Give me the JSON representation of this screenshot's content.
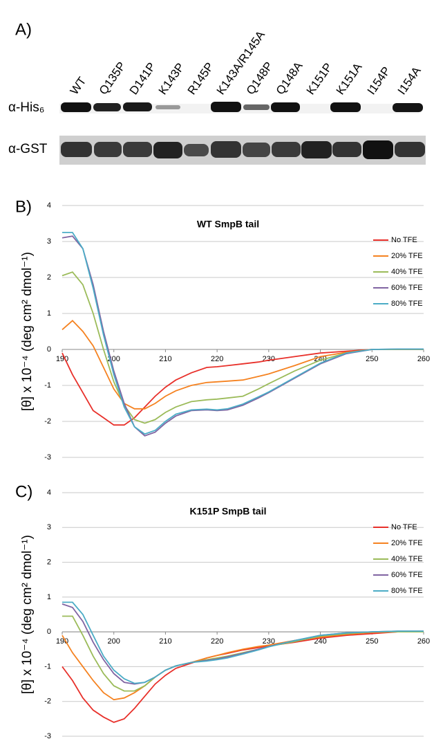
{
  "blot": {
    "panel_label": "A)",
    "lanes": [
      "WT",
      "Q135P",
      "D141P",
      "K143P",
      "R145P",
      "K143A/R145A",
      "Q148P",
      "Q148A",
      "K151P",
      "K151A",
      "I154P",
      "I154A"
    ],
    "rows": [
      "α-His₆",
      "α-GST"
    ]
  },
  "chart_data": [
    {
      "type": "line",
      "panel_label": "B)",
      "title": "WT SmpB tail",
      "y_label": "[θ] x 10⁻⁴ (deg cm² dmol⁻¹)",
      "x": [
        190,
        192,
        194,
        196,
        198,
        200,
        202,
        204,
        206,
        208,
        210,
        212,
        215,
        218,
        220,
        222,
        225,
        228,
        230,
        235,
        240,
        245,
        250,
        255,
        260
      ],
      "xlim": [
        190,
        260
      ],
      "xticks": [
        190,
        200,
        210,
        220,
        230,
        240,
        250,
        260
      ],
      "ylim": [
        -3,
        4
      ],
      "yticks": [
        -3,
        -2,
        -1,
        0,
        1,
        2,
        3,
        4
      ],
      "grid": true,
      "legend": "right",
      "series": [
        {
          "name": "No TFE",
          "color": "#e8302a",
          "values": [
            -0.1,
            -0.7,
            -1.2,
            -1.7,
            -1.9,
            -2.1,
            -2.1,
            -1.9,
            -1.6,
            -1.3,
            -1.05,
            -0.85,
            -0.65,
            -0.5,
            -0.48,
            -0.45,
            -0.4,
            -0.35,
            -0.3,
            -0.2,
            -0.1,
            -0.05,
            0,
            0,
            0
          ]
        },
        {
          "name": "20% TFE",
          "color": "#f58220",
          "values": [
            0.55,
            0.8,
            0.5,
            0.1,
            -0.5,
            -1.1,
            -1.5,
            -1.65,
            -1.65,
            -1.5,
            -1.3,
            -1.15,
            -1.0,
            -0.92,
            -0.9,
            -0.88,
            -0.85,
            -0.75,
            -0.68,
            -0.45,
            -0.2,
            -0.08,
            0,
            0,
            0
          ]
        },
        {
          "name": "40% TFE",
          "color": "#9bbb59",
          "values": [
            2.05,
            2.15,
            1.8,
            1.0,
            0.0,
            -0.9,
            -1.55,
            -1.95,
            -2.05,
            -1.95,
            -1.75,
            -1.6,
            -1.45,
            -1.4,
            -1.38,
            -1.35,
            -1.3,
            -1.1,
            -0.95,
            -0.6,
            -0.3,
            -0.1,
            0,
            0,
            0
          ]
        },
        {
          "name": "60% TFE",
          "color": "#8064a2",
          "values": [
            3.1,
            3.15,
            2.8,
            1.8,
            0.5,
            -0.6,
            -1.5,
            -2.15,
            -2.4,
            -2.3,
            -2.05,
            -1.85,
            -1.7,
            -1.68,
            -1.7,
            -1.68,
            -1.55,
            -1.35,
            -1.2,
            -0.8,
            -0.4,
            -0.12,
            0,
            0.01,
            0.01
          ]
        },
        {
          "name": "80% TFE",
          "color": "#4bacc6",
          "values": [
            3.25,
            3.25,
            2.8,
            1.7,
            0.4,
            -0.7,
            -1.6,
            -2.15,
            -2.35,
            -2.25,
            -2.0,
            -1.8,
            -1.68,
            -1.66,
            -1.68,
            -1.65,
            -1.52,
            -1.32,
            -1.18,
            -0.78,
            -0.38,
            -0.1,
            0,
            0.01,
            0.01
          ]
        }
      ]
    },
    {
      "type": "line",
      "panel_label": "C)",
      "title": "K151P SmpB tail",
      "y_label": "[θ] x 10⁻⁴ (deg cm² dmol⁻¹)",
      "x": [
        190,
        192,
        194,
        196,
        198,
        200,
        202,
        204,
        206,
        208,
        210,
        212,
        215,
        218,
        220,
        222,
        225,
        228,
        230,
        235,
        240,
        245,
        250,
        255,
        260
      ],
      "xlim": [
        190,
        260
      ],
      "xticks": [
        190,
        200,
        210,
        220,
        230,
        240,
        250,
        260
      ],
      "ylim": [
        -3,
        4
      ],
      "yticks": [
        -3,
        -2,
        -1,
        0,
        1,
        2,
        3,
        4
      ],
      "grid": true,
      "legend": "right",
      "series": [
        {
          "name": "No TFE",
          "color": "#e8302a",
          "values": [
            -1.0,
            -1.4,
            -1.9,
            -2.25,
            -2.45,
            -2.6,
            -2.5,
            -2.2,
            -1.85,
            -1.5,
            -1.25,
            -1.05,
            -0.9,
            -0.75,
            -0.68,
            -0.62,
            -0.52,
            -0.45,
            -0.4,
            -0.3,
            -0.18,
            -0.1,
            -0.05,
            0,
            0
          ]
        },
        {
          "name": "20% TFE",
          "color": "#f58220",
          "values": [
            -0.1,
            -0.6,
            -1.0,
            -1.4,
            -1.75,
            -1.95,
            -1.9,
            -1.75,
            -1.55,
            -1.3,
            -1.1,
            -0.98,
            -0.88,
            -0.75,
            -0.68,
            -0.6,
            -0.5,
            -0.42,
            -0.38,
            -0.25,
            -0.15,
            -0.07,
            -0.02,
            0,
            0
          ]
        },
        {
          "name": "40% TFE",
          "color": "#9bbb59",
          "values": [
            0.45,
            0.45,
            -0.1,
            -0.7,
            -1.2,
            -1.55,
            -1.7,
            -1.7,
            -1.55,
            -1.3,
            -1.1,
            -0.98,
            -0.88,
            -0.8,
            -0.75,
            -0.7,
            -0.6,
            -0.5,
            -0.42,
            -0.28,
            -0.12,
            -0.05,
            0,
            0,
            0
          ]
        },
        {
          "name": "60% TFE",
          "color": "#8064a2",
          "values": [
            0.8,
            0.7,
            0.3,
            -0.3,
            -0.8,
            -1.2,
            -1.45,
            -1.5,
            -1.45,
            -1.3,
            -1.1,
            -0.98,
            -0.88,
            -0.82,
            -0.78,
            -0.72,
            -0.62,
            -0.5,
            -0.42,
            -0.25,
            -0.1,
            -0.03,
            0,
            0.02,
            0.02
          ]
        },
        {
          "name": "80% TFE",
          "color": "#4bacc6",
          "values": [
            0.85,
            0.85,
            0.5,
            -0.1,
            -0.7,
            -1.1,
            -1.35,
            -1.48,
            -1.45,
            -1.3,
            -1.1,
            -0.98,
            -0.88,
            -0.84,
            -0.8,
            -0.75,
            -0.64,
            -0.52,
            -0.43,
            -0.25,
            -0.1,
            -0.03,
            0,
            0.02,
            0.02
          ]
        }
      ]
    }
  ]
}
